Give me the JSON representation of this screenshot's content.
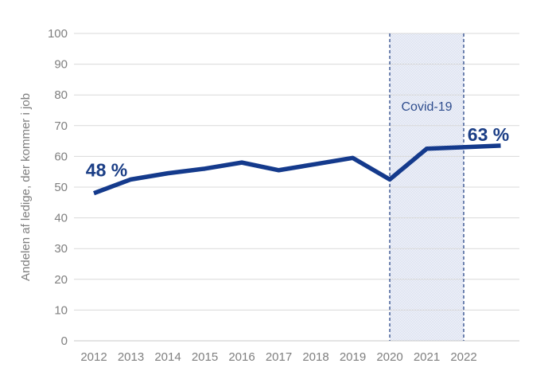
{
  "chart_data": {
    "type": "line",
    "title": "",
    "ylabel": "Andelen af ledige, der kommer i job",
    "x": [
      2012,
      2013,
      2014,
      2015,
      2016,
      2017,
      2018,
      2019,
      2020,
      2021,
      2022,
      2023
    ],
    "values": [
      48,
      52.5,
      54.5,
      56,
      58,
      55.5,
      57.5,
      59.5,
      52.5,
      62.5,
      63,
      63.5
    ],
    "x_tick_labels": [
      "2012",
      "2013",
      "2014",
      "2015",
      "2016",
      "2017",
      "2018",
      "2019",
      "2020",
      "2021",
      "2022"
    ],
    "y_tick_labels": [
      "0",
      "10",
      "20",
      "30",
      "40",
      "50",
      "60",
      "70",
      "80",
      "90",
      "100"
    ],
    "ylim": [
      0,
      100
    ],
    "ytick_step": 10,
    "grid": "horizontal",
    "legend": "none",
    "series_name": "Andelen af ledige, der kommer i job",
    "annotations": [
      {
        "text": "48 %",
        "attach_x": 2012,
        "attach_y": 48,
        "position": "above-start"
      },
      {
        "text": "63 %",
        "attach_x": 2022,
        "attach_y": 63,
        "position": "above-end"
      }
    ],
    "band": {
      "label": "Covid-19",
      "x_from": 2020,
      "x_to": 2022
    }
  },
  "colors": {
    "line": "#143a8c",
    "annotation": "#1b3e86",
    "band_fill": "#ccd4ea",
    "band_border": "#2a4788",
    "band_label": "#2e4d8e",
    "gridline": "#d9d9d9",
    "axis_line": "#c8c8c8",
    "tick_text": "#7f7f7f"
  }
}
